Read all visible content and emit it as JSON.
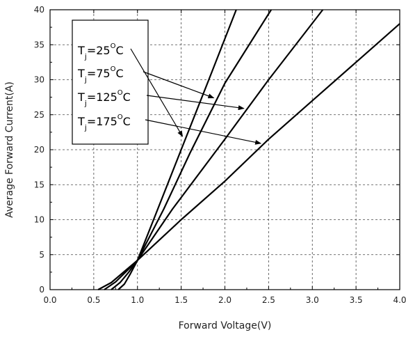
{
  "chart_data": {
    "type": "line",
    "title": "",
    "xlabel": "Forward Voltage(V)",
    "ylabel": "Average Forward Current(A)",
    "xlim": [
      0,
      4.0
    ],
    "ylim": [
      0,
      40
    ],
    "x_ticks": [
      "0.0",
      "0.5",
      "1.0",
      "1.5",
      "2.0",
      "2.5",
      "3.0",
      "3.5",
      "4.0"
    ],
    "y_ticks": [
      "0",
      "5",
      "10",
      "15",
      "20",
      "25",
      "30",
      "35",
      "40"
    ],
    "grid": true,
    "grid_style": "dashed",
    "line_color": "#000000",
    "legend_placement": "top-left",
    "series": [
      {
        "legend": {
          "main": "T",
          "sub": "j",
          "rest": "=25",
          "sup": "O",
          "unit": "C"
        },
        "points": [
          [
            0.78,
            0
          ],
          [
            0.85,
            0.8
          ],
          [
            0.92,
            2.3
          ],
          [
            1.0,
            4.2
          ],
          [
            1.2,
            10.5
          ],
          [
            1.5,
            20.0
          ],
          [
            1.8,
            29.5
          ],
          [
            2.13,
            40
          ]
        ]
      },
      {
        "legend": {
          "main": "T",
          "sub": "j",
          "rest": "=75",
          "sup": "O",
          "unit": "C"
        },
        "points": [
          [
            0.7,
            0
          ],
          [
            0.8,
            1.0
          ],
          [
            0.9,
            2.5
          ],
          [
            1.0,
            4.2
          ],
          [
            1.3,
            11.5
          ],
          [
            1.6,
            19.5
          ],
          [
            2.0,
            29.5
          ],
          [
            2.53,
            40
          ]
        ]
      },
      {
        "legend": {
          "main": "T",
          "sub": "j",
          "rest": "=125",
          "sup": "O",
          "unit": "C"
        },
        "points": [
          [
            0.62,
            0
          ],
          [
            0.75,
            1.1
          ],
          [
            0.88,
            2.7
          ],
          [
            1.0,
            4.2
          ],
          [
            1.4,
            11.5
          ],
          [
            2.0,
            21.5
          ],
          [
            2.5,
            30.0
          ],
          [
            3.12,
            40
          ]
        ]
      },
      {
        "legend": {
          "main": "T",
          "sub": "j",
          "rest": "=175",
          "sup": "O",
          "unit": "C"
        },
        "points": [
          [
            0.55,
            0
          ],
          [
            0.7,
            1.0
          ],
          [
            0.85,
            2.6
          ],
          [
            1.0,
            4.2
          ],
          [
            1.5,
            10.0
          ],
          [
            2.0,
            15.5
          ],
          [
            2.5,
            21.5
          ],
          [
            3.0,
            27.0
          ],
          [
            3.5,
            32.5
          ],
          [
            4.0,
            38.0
          ]
        ]
      }
    ]
  }
}
